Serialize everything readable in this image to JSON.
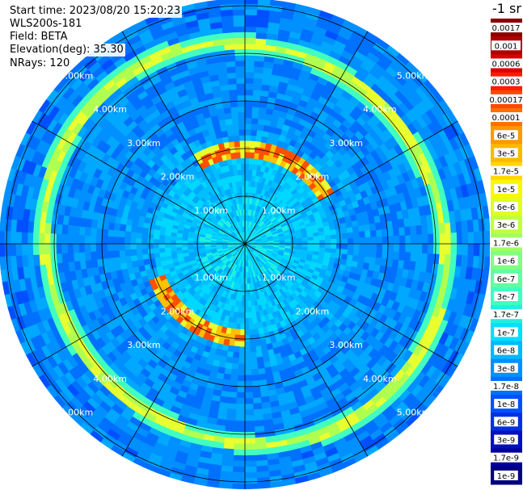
{
  "info": {
    "start_time": "Start time: 2023/08/20 15:20:23",
    "instrument": "WLS200s-181",
    "field": "Field: BETA",
    "elevation": "Elevation(deg): 35.30",
    "nrays": "NRays: 120"
  },
  "chart_data": {
    "type": "heatmap",
    "projection": "polar",
    "range_rings_km": [
      1,
      2,
      3,
      4,
      5
    ],
    "ring_labels": [
      "1.00km",
      "2.00km",
      "3.00km",
      "4.00km",
      "5.00km"
    ],
    "grid": true,
    "colorbar_unit": "-1 sr",
    "colorbar_ticks": [
      "0.0017",
      "0.001",
      "0.0006",
      "0.0003",
      "0.00017",
      "0.0001",
      "6e-5",
      "3e-5",
      "1.7e-5",
      "1e-5",
      "6e-6",
      "3e-6",
      "1.7e-6",
      "1e-6",
      "6e-7",
      "3e-7",
      "1.7e-7",
      "1e-7",
      "6e-8",
      "3e-8",
      "1.7e-8",
      "1e-8",
      "6e-9",
      "3e-9",
      "1.7e-9",
      "1e-9"
    ],
    "colorbar_colors": [
      "#8b0000",
      "#b00000",
      "#d80000",
      "#ff1a00",
      "#ff4800",
      "#ff7000",
      "#ff9800",
      "#ffb800",
      "#ffd800",
      "#f8f800",
      "#e0ff20",
      "#c0ff40",
      "#a0ff60",
      "#80ff80",
      "#60ffa0",
      "#40ffc0",
      "#20f0e0",
      "#00e0ff",
      "#00b8ff",
      "#0090ff",
      "#0070ff",
      "#0050ff",
      "#0030e0",
      "#0010c0",
      "#0000a0",
      "#000080"
    ]
  }
}
